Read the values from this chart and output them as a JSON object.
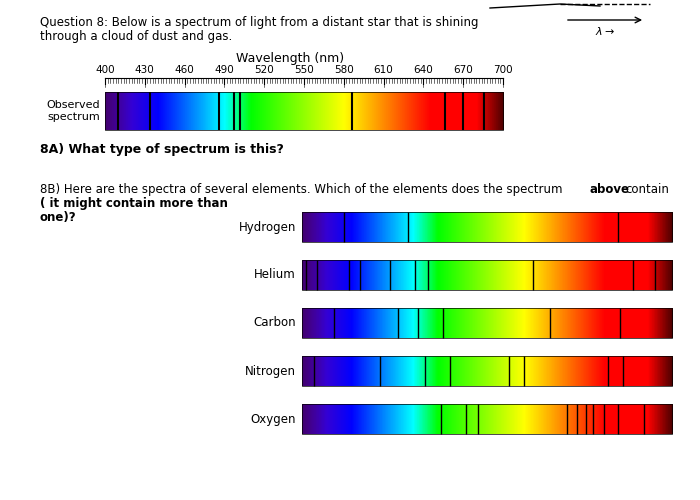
{
  "title_line1": "Question 8: Below is a spectrum of light from a distant star that is shining",
  "title_line2": "through a cloud of dust and gas.",
  "wavelength_label": "Wavelength (nm)",
  "tick_values": [
    400,
    430,
    460,
    490,
    520,
    550,
    580,
    610,
    640,
    670,
    700
  ],
  "wl_min": 400,
  "wl_max": 700,
  "observed_label": "Observed\nspectrum",
  "question_8a": "8A) What type of spectrum is this?",
  "elements": [
    "Hydrogen",
    "Helium",
    "Carbon",
    "Nitrogen",
    "Oxygen"
  ],
  "observed_dark_lines": [
    410,
    434,
    486,
    497,
    502,
    586,
    656,
    670,
    686
  ],
  "hydrogen_dark_lines": [
    434,
    486,
    656
  ],
  "helium_dark_lines": [
    403,
    412,
    438,
    447,
    471,
    492,
    502,
    587,
    668,
    686
  ],
  "carbon_dark_lines": [
    426,
    478,
    494,
    514,
    601,
    658
  ],
  "nitrogen_dark_lines": [
    410,
    463,
    500,
    520,
    568,
    580,
    648,
    660
  ],
  "oxygen_dark_lines": [
    513,
    533,
    543,
    615,
    623,
    630,
    636,
    645,
    656,
    677
  ],
  "bg_color": "#ffffff"
}
